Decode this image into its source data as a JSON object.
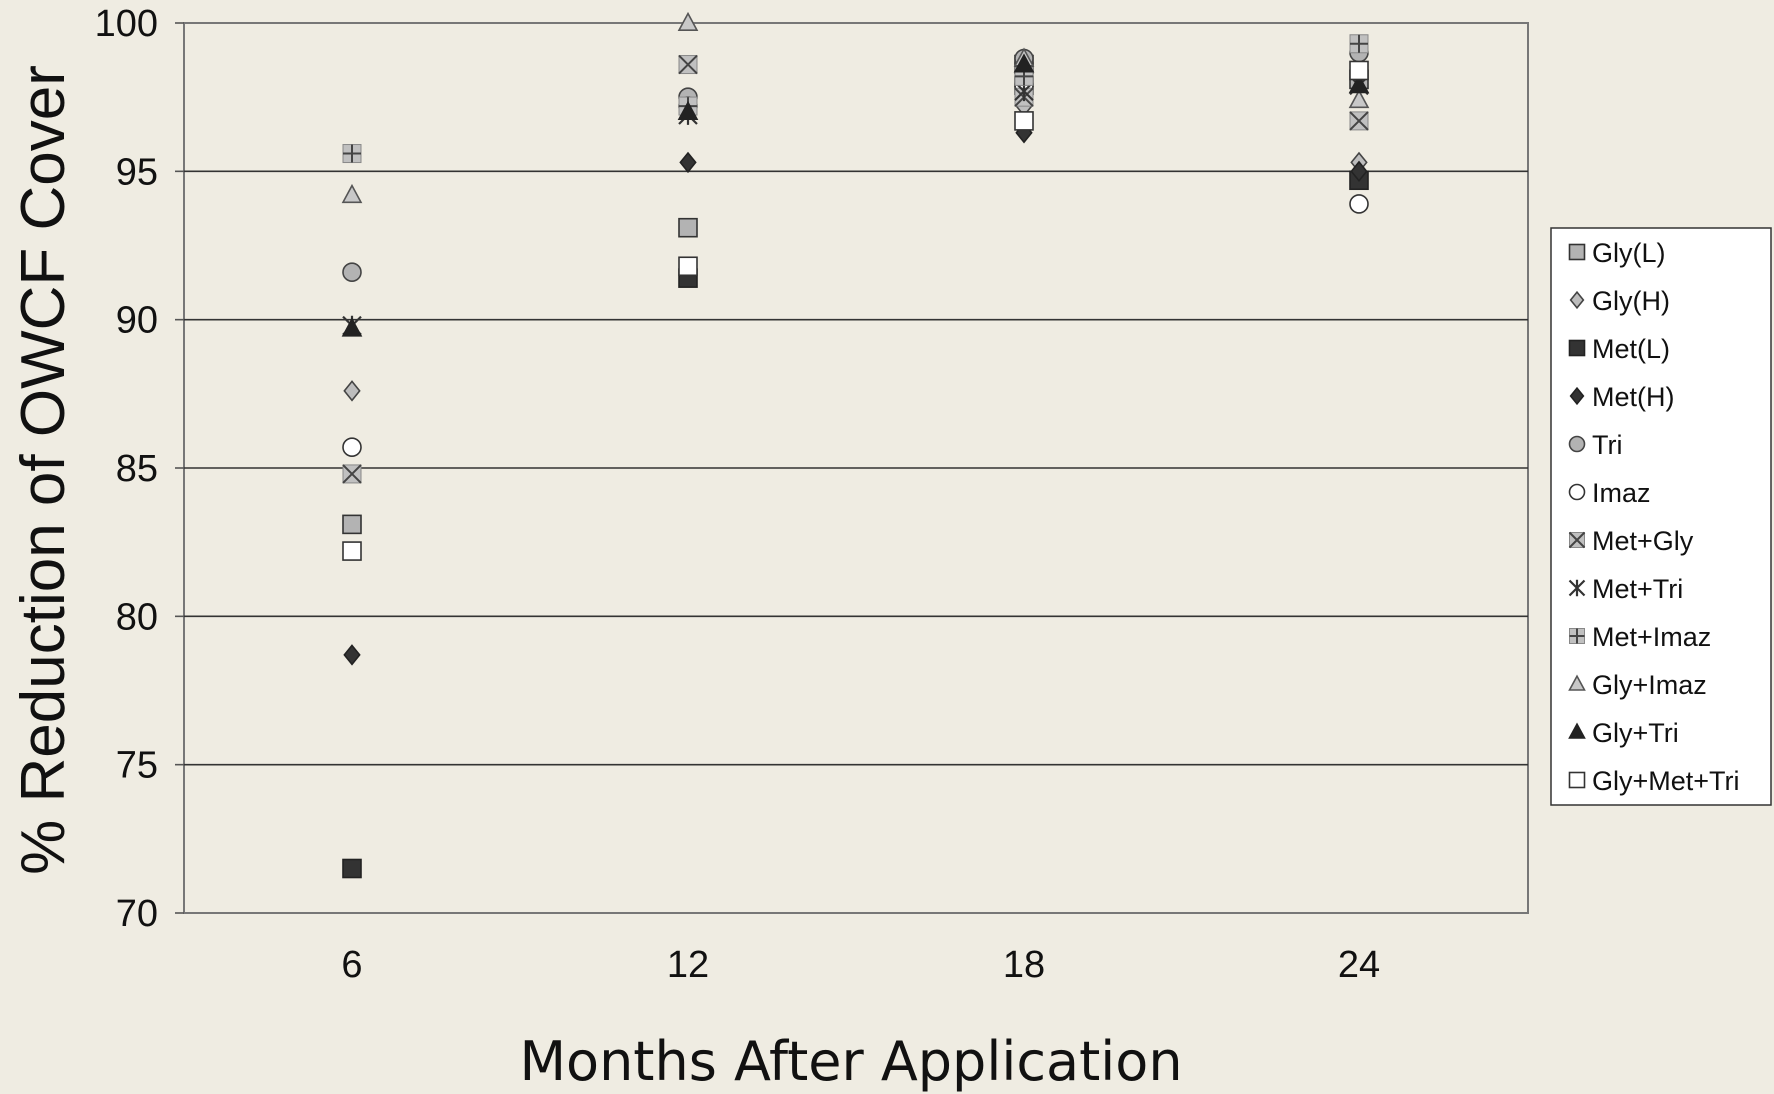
{
  "chart_data": {
    "type": "scatter",
    "title": "",
    "xlabel": "Months After Application",
    "ylabel": "% Reduction of OWCF Cover",
    "x": [
      6,
      12,
      18,
      24
    ],
    "x_tick_labels": [
      "6",
      "12",
      "18",
      "24"
    ],
    "ylim": [
      70,
      100
    ],
    "y_ticks": [
      70,
      75,
      80,
      85,
      90,
      95,
      100
    ],
    "grid": "horizontal",
    "legend_position": "right",
    "series": [
      {
        "name": "Gly(L)",
        "marker": "square",
        "fill": "#b3b3b3",
        "stroke": "#333333",
        "values": [
          83.1,
          93.1,
          97.9,
          98.1
        ]
      },
      {
        "name": "Gly(H)",
        "marker": "diamond",
        "fill": "#bdbdbd",
        "stroke": "#444444",
        "values": [
          87.6,
          97.3,
          97.2,
          95.3
        ]
      },
      {
        "name": "Met(L)",
        "marker": "square",
        "fill": "#333333",
        "stroke": "#222222",
        "values": [
          71.5,
          91.4,
          98.6,
          94.7
        ]
      },
      {
        "name": "Met(H)",
        "marker": "diamond",
        "fill": "#333333",
        "stroke": "#222222",
        "values": [
          78.7,
          95.3,
          96.3,
          95.0
        ]
      },
      {
        "name": "Tri",
        "marker": "circle",
        "fill": "#b3b3b3",
        "stroke": "#444444",
        "values": [
          91.6,
          97.5,
          98.8,
          99.0
        ]
      },
      {
        "name": "Imaz",
        "marker": "circle",
        "fill": "#ffffff",
        "stroke": "#333333",
        "values": [
          85.7,
          97.2,
          97.9,
          93.9
        ]
      },
      {
        "name": "Met+Gly",
        "marker": "x",
        "fill": "none",
        "stroke": "#7a7a7a",
        "values": [
          84.8,
          98.6,
          97.5,
          96.7
        ]
      },
      {
        "name": "Met+Tri",
        "marker": "asterisk",
        "fill": "none",
        "stroke": "#444444",
        "values": [
          89.8,
          96.9,
          97.7,
          97.9
        ]
      },
      {
        "name": "Met+Imaz",
        "marker": "plus",
        "fill": "none",
        "stroke": "#7a7a7a",
        "values": [
          95.6,
          97.2,
          98.2,
          99.3
        ]
      },
      {
        "name": "Gly+Imaz",
        "marker": "triangle",
        "fill": "#c8c8c8",
        "stroke": "#555555",
        "values": [
          94.2,
          100.0,
          98.8,
          97.4
        ]
      },
      {
        "name": "Gly+Tri",
        "marker": "triangle",
        "fill": "#222222",
        "stroke": "#222222",
        "values": [
          89.7,
          97.0,
          98.6,
          97.9
        ]
      },
      {
        "name": "Gly+Met+Tri",
        "marker": "square",
        "fill": "#ffffff",
        "stroke": "#333333",
        "values": [
          82.2,
          91.8,
          96.7,
          98.4
        ]
      }
    ]
  }
}
